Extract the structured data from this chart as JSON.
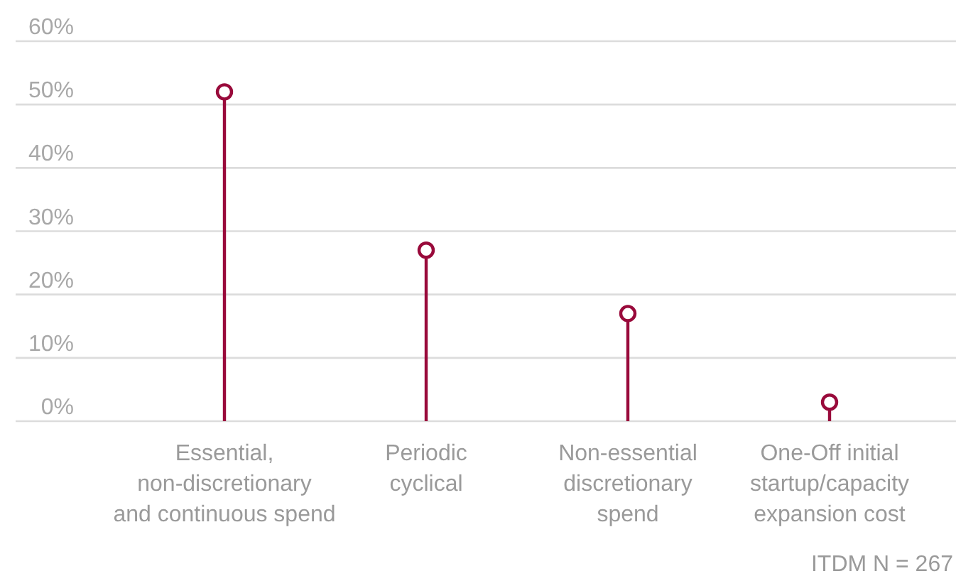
{
  "chart_data": {
    "type": "lollipop",
    "categories": [
      "Essential,\nnon-discretionary\nand continuous spend",
      "Periodic\ncyclical",
      "Non-essential\ndiscretionary\nspend",
      "One-Off initial\nstartup/capacity\nexpansion cost"
    ],
    "values": [
      52,
      27,
      17,
      3
    ],
    "color": "#990a3b",
    "marker": "circle",
    "ylim": [
      0,
      60
    ],
    "yticks": [
      {
        "value": 0,
        "label": "0%"
      },
      {
        "value": 10,
        "label": "10%"
      },
      {
        "value": 20,
        "label": "20%"
      },
      {
        "value": 30,
        "label": "30%"
      },
      {
        "value": 40,
        "label": "40%"
      },
      {
        "value": 50,
        "label": "50%"
      },
      {
        "value": 60,
        "label": "60%"
      }
    ],
    "grid": "y",
    "annotations": [
      "ITDM N = 267"
    ]
  }
}
